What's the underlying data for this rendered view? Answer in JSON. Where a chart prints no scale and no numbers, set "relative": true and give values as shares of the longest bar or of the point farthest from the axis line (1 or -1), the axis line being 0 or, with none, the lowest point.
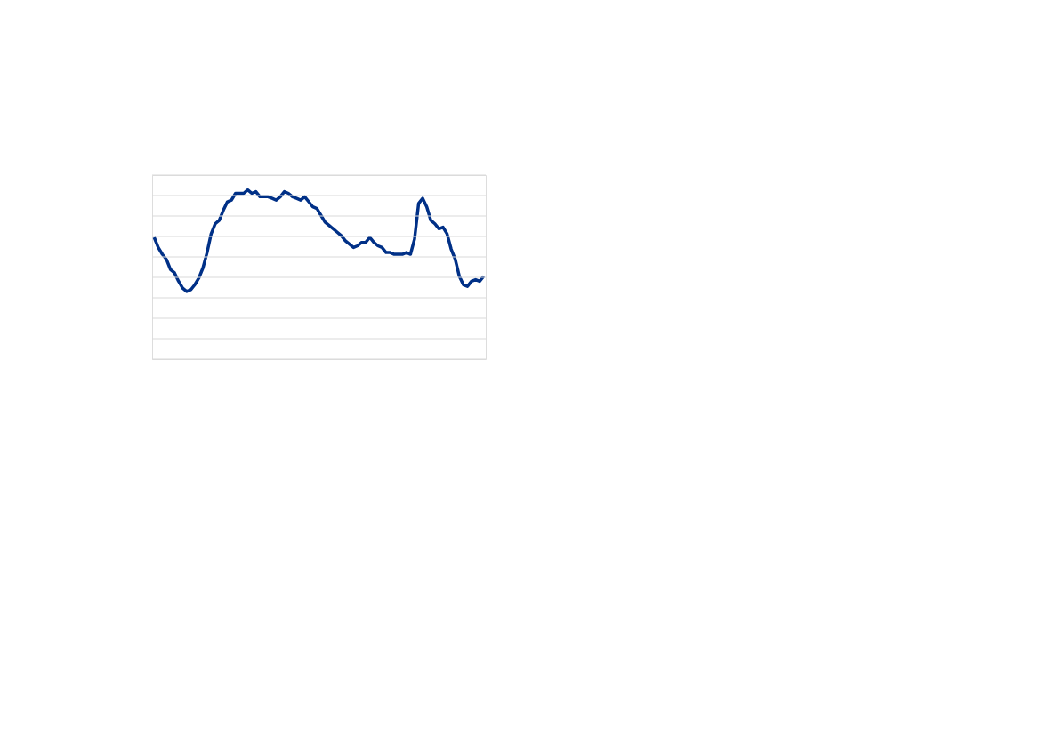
{
  "chart_data": {
    "type": "line",
    "relative": true,
    "grid": "y",
    "tick_labels": false,
    "marker": "none",
    "line_style": "solid",
    "categories": [
      null,
      null,
      null,
      null,
      null,
      null,
      null,
      null,
      null,
      null,
      null,
      null,
      null,
      null,
      null,
      null,
      null,
      null,
      null,
      null,
      null,
      null,
      null,
      null,
      null,
      null,
      null,
      null,
      null,
      null,
      null,
      null,
      null,
      null,
      null,
      null,
      null,
      null,
      null,
      null,
      null,
      null,
      null,
      null,
      null,
      null,
      null,
      null,
      null,
      null,
      null,
      null,
      null,
      null,
      null,
      null,
      null,
      null,
      null,
      null,
      null,
      null,
      null,
      null,
      null,
      null,
      null,
      null,
      null,
      null,
      null,
      null,
      null,
      null,
      null,
      null,
      null,
      null,
      null,
      null,
      null,
      null
    ],
    "series": [
      {
        "color": "#003087",
        "values": [
          0.72,
          0.66,
          0.62,
          0.59,
          0.53,
          0.51,
          0.46,
          0.42,
          0.4,
          0.41,
          0.44,
          0.48,
          0.54,
          0.63,
          0.74,
          0.8,
          0.82,
          0.88,
          0.93,
          0.94,
          0.98,
          0.98,
          0.98,
          1,
          0.98,
          0.99,
          0.96,
          0.96,
          0.96,
          0.95,
          0.94,
          0.96,
          0.99,
          0.98,
          0.96,
          0.95,
          0.94,
          0.96,
          0.93,
          0.9,
          0.89,
          0.85,
          0.81,
          0.79,
          0.77,
          0.75,
          0.73,
          0.7,
          0.68,
          0.66,
          0.67,
          0.69,
          0.69,
          0.72,
          0.69,
          0.67,
          0.66,
          0.63,
          0.63,
          0.62,
          0.62,
          0.62,
          0.63,
          0.62,
          0.71,
          0.92,
          0.95,
          0.9,
          0.82,
          0.8,
          0.77,
          0.78,
          0.74,
          0.65,
          0.59,
          0.49,
          0.44,
          0.43,
          0.46,
          0.47,
          0.46,
          0.49
        ]
      }
    ]
  }
}
